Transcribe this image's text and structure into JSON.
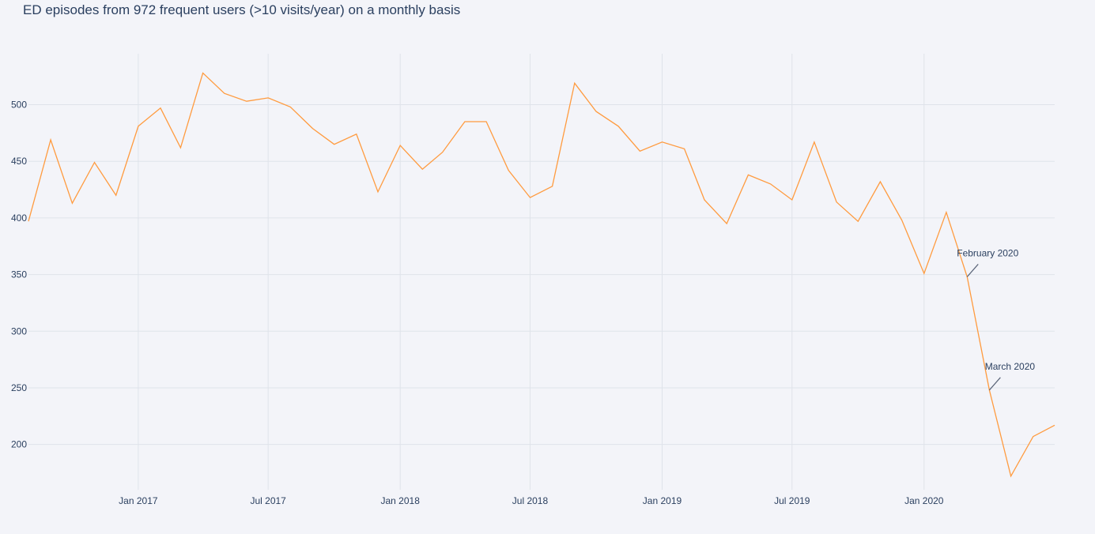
{
  "chart_data": {
    "type": "line",
    "title": "ED episodes from 972 frequent users (>10 visits/year) on a monthly basis",
    "xlabel": "",
    "ylabel": "",
    "x_range": [
      "2016-08-01",
      "2020-07-01"
    ],
    "ylim": [
      160,
      545
    ],
    "y_ticks": [
      200,
      250,
      300,
      350,
      400,
      450,
      500
    ],
    "x_ticks": [
      {
        "date": "2017-01-01",
        "label": "Jan 2017"
      },
      {
        "date": "2017-07-01",
        "label": "Jul 2017"
      },
      {
        "date": "2018-01-01",
        "label": "Jan 2018"
      },
      {
        "date": "2018-07-01",
        "label": "Jul 2018"
      },
      {
        "date": "2019-01-01",
        "label": "Jan 2019"
      },
      {
        "date": "2019-07-01",
        "label": "Jul 2019"
      },
      {
        "date": "2020-01-01",
        "label": "Jan 2020"
      }
    ],
    "grid": true,
    "line_color": "#ff9b3f",
    "x": [
      "2016-08-01",
      "2016-09-01",
      "2016-10-01",
      "2016-11-01",
      "2016-12-01",
      "2017-01-01",
      "2017-02-01",
      "2017-03-01",
      "2017-04-01",
      "2017-05-01",
      "2017-06-01",
      "2017-07-01",
      "2017-08-01",
      "2017-09-01",
      "2017-10-01",
      "2017-11-01",
      "2017-12-01",
      "2018-01-01",
      "2018-02-01",
      "2018-03-01",
      "2018-04-01",
      "2018-05-01",
      "2018-06-01",
      "2018-07-01",
      "2018-08-01",
      "2018-09-01",
      "2018-10-01",
      "2018-11-01",
      "2018-12-01",
      "2019-01-01",
      "2019-02-01",
      "2019-03-01",
      "2019-04-01",
      "2019-05-01",
      "2019-06-01",
      "2019-07-01",
      "2019-08-01",
      "2019-09-01",
      "2019-10-01",
      "2019-11-01",
      "2019-12-01",
      "2020-01-01",
      "2020-02-01",
      "2020-03-01",
      "2020-04-01",
      "2020-05-01",
      "2020-06-01",
      "2020-07-01"
    ],
    "values": [
      397,
      469,
      413,
      449,
      420,
      481,
      497,
      462,
      528,
      510,
      503,
      506,
      498,
      479,
      465,
      474,
      423,
      464,
      443,
      458,
      485,
      485,
      442,
      418,
      428,
      519,
      494,
      481,
      459,
      467,
      461,
      416,
      395,
      438,
      430,
      416,
      467,
      414,
      397,
      432,
      398,
      351,
      405,
      348,
      248,
      172,
      207,
      217
    ],
    "annotations": [
      {
        "text": "February 2020",
        "x": "2020-03-01",
        "y": 348
      },
      {
        "text": "March 2020",
        "x": "2020-04-01",
        "y": 248
      }
    ]
  }
}
